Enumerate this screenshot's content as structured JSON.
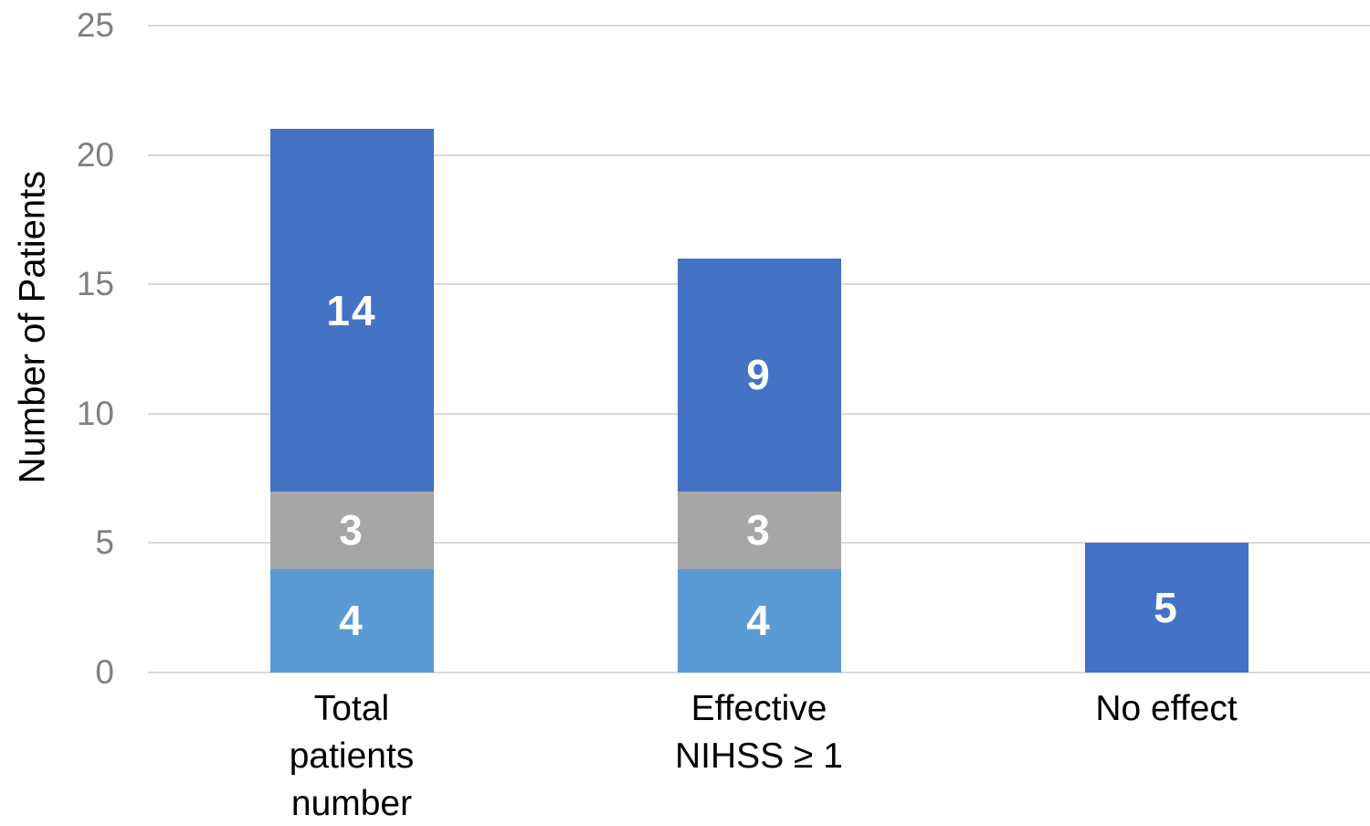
{
  "chart_data": {
    "type": "bar",
    "stacked": true,
    "title": "",
    "xlabel": "",
    "ylabel": "Number of Patients",
    "categories": [
      "Total\npatients\nnumber",
      "Effective\nNIHSS ≥ 1",
      "No effect"
    ],
    "series": [
      {
        "color": "#5b9bd5",
        "values": [
          4,
          4,
          0
        ]
      },
      {
        "color": "#a6a6a6",
        "values": [
          3,
          3,
          0
        ]
      },
      {
        "color": "#4472c4",
        "values": [
          14,
          9,
          5
        ]
      }
    ],
    "totals": [
      21,
      16,
      5
    ],
    "ylim": [
      0,
      25
    ],
    "yticks": [
      0,
      5,
      10,
      15,
      20,
      25
    ],
    "grid": true,
    "legend": false,
    "theme": {
      "gridline_color": "#d9d9d9",
      "tick_label_color": "#7f7f7f",
      "axis_title_color": "#000000",
      "category_label_color": "#000000",
      "bar_value_label_color": "#ffffff",
      "background_color": "#ffffff"
    }
  }
}
